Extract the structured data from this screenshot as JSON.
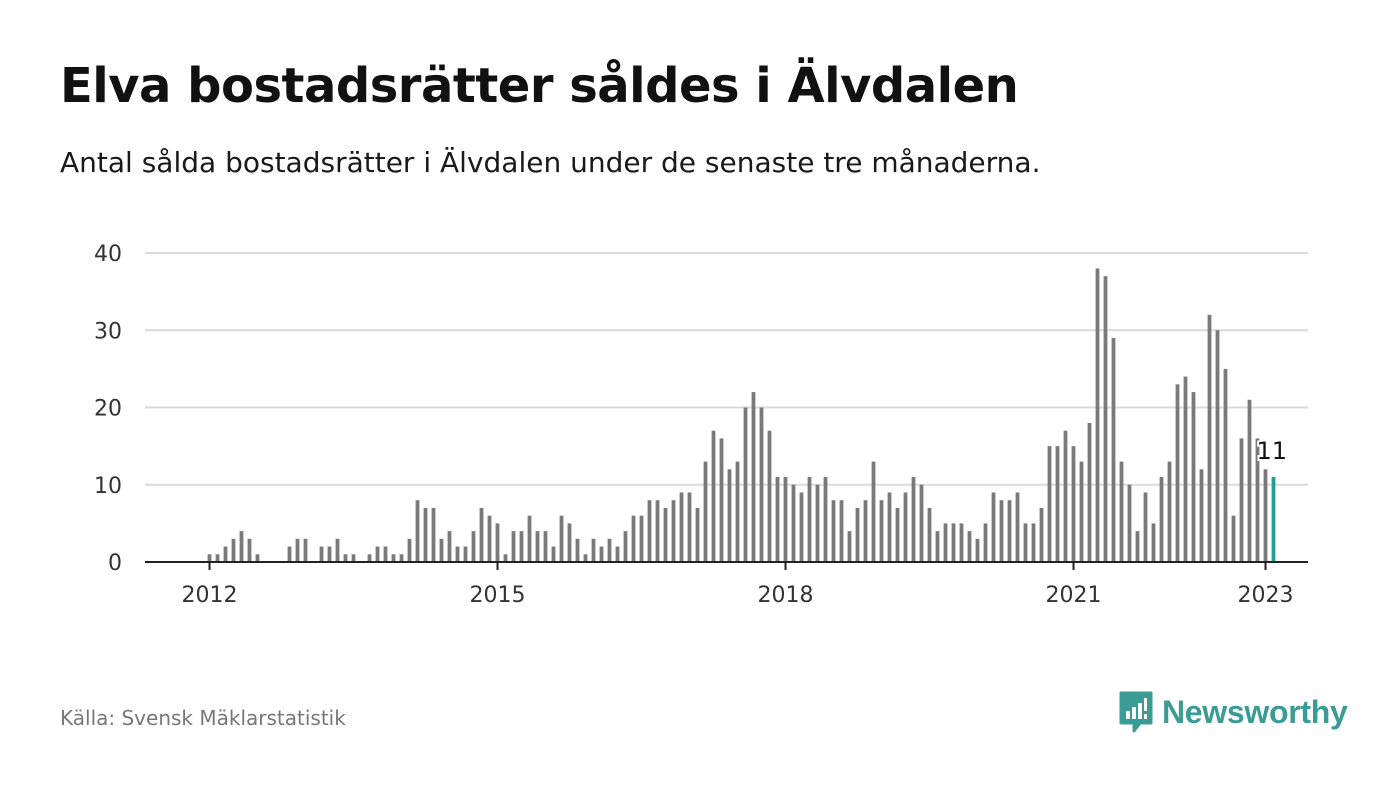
{
  "title": "Elva bostadsrätter såldes i Älvdalen",
  "subtitle": "Antal sålda bostadsrätter i Älvdalen under de senaste tre månaderna.",
  "source": "Källa: Svensk Mäklarstatistik",
  "brand": "Newsworthy",
  "colors": {
    "bar": "#7a7a7a",
    "highlight": "#2a9d8f",
    "grid": "#d9d9d9",
    "brand": "#3a9c95"
  },
  "chart_data": {
    "type": "bar",
    "title": "Elva bostadsrätter såldes i Älvdalen",
    "xlabel": "",
    "ylabel": "",
    "ylim": [
      0,
      40
    ],
    "yticks": [
      0,
      10,
      20,
      30,
      40
    ],
    "xticks": [
      "2012",
      "2015",
      "2018",
      "2021",
      "2023"
    ],
    "grid": true,
    "x_start": "2011-09",
    "x_end": "2023-01",
    "values": [
      0,
      0,
      0,
      0,
      1,
      1,
      2,
      3,
      4,
      3,
      1,
      0,
      0,
      0,
      2,
      3,
      3,
      0,
      2,
      2,
      3,
      1,
      1,
      0,
      1,
      2,
      2,
      1,
      1,
      3,
      8,
      7,
      7,
      3,
      4,
      2,
      2,
      4,
      7,
      6,
      5,
      1,
      4,
      4,
      6,
      4,
      4,
      2,
      6,
      5,
      3,
      1,
      3,
      2,
      3,
      2,
      4,
      6,
      6,
      8,
      8,
      7,
      8,
      9,
      9,
      7,
      13,
      17,
      16,
      12,
      13,
      20,
      22,
      20,
      17,
      11,
      11,
      10,
      9,
      11,
      10,
      11,
      8,
      8,
      4,
      7,
      8,
      13,
      8,
      9,
      7,
      9,
      11,
      10,
      7,
      4,
      5,
      5,
      5,
      4,
      3,
      5,
      9,
      8,
      8,
      9,
      5,
      5,
      7,
      15,
      15,
      17,
      15,
      13,
      18,
      38,
      37,
      29,
      13,
      10,
      4,
      9,
      5,
      11,
      13,
      23,
      24,
      22,
      12,
      32,
      30,
      25,
      6,
      16,
      21,
      16,
      12,
      11
    ],
    "highlight_last": true,
    "annotation": "11"
  }
}
